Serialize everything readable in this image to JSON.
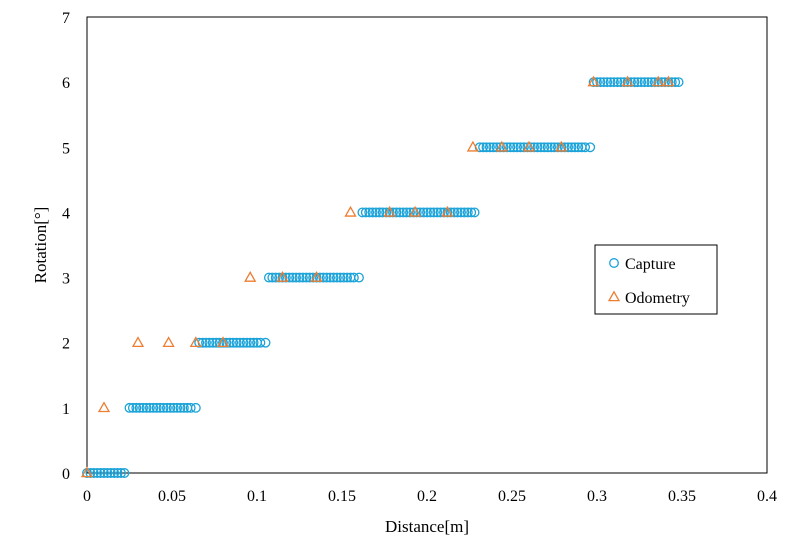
{
  "chart_data": {
    "type": "scatter",
    "title": "",
    "xlabel": "Distance[m]",
    "ylabel": "Rotation[°]",
    "xlim": [
      0,
      0.4
    ],
    "ylim": [
      0,
      7
    ],
    "x_ticks": [
      "0",
      "0.05",
      "0.1",
      "0.15",
      "0.2",
      "0.25",
      "0.3",
      "0.35",
      "0.4"
    ],
    "y_ticks": [
      "0",
      "1",
      "2",
      "3",
      "4",
      "5",
      "6",
      "7"
    ],
    "grid": false,
    "legend_position": "right",
    "series": [
      {
        "name": "Capture",
        "marker": "circle",
        "color": "#1BA3D9",
        "points": [
          [
            0.0,
            0
          ],
          [
            0.002,
            0
          ],
          [
            0.004,
            0
          ],
          [
            0.006,
            0
          ],
          [
            0.008,
            0
          ],
          [
            0.01,
            0
          ],
          [
            0.012,
            0
          ],
          [
            0.014,
            0
          ],
          [
            0.016,
            0
          ],
          [
            0.018,
            0
          ],
          [
            0.02,
            0
          ],
          [
            0.022,
            0
          ],
          [
            0.025,
            1
          ],
          [
            0.027,
            1
          ],
          [
            0.029,
            1
          ],
          [
            0.031,
            1
          ],
          [
            0.033,
            1
          ],
          [
            0.035,
            1
          ],
          [
            0.037,
            1
          ],
          [
            0.039,
            1
          ],
          [
            0.041,
            1
          ],
          [
            0.043,
            1
          ],
          [
            0.045,
            1
          ],
          [
            0.047,
            1
          ],
          [
            0.049,
            1
          ],
          [
            0.051,
            1
          ],
          [
            0.053,
            1
          ],
          [
            0.055,
            1
          ],
          [
            0.057,
            1
          ],
          [
            0.059,
            1
          ],
          [
            0.061,
            1
          ],
          [
            0.064,
            1
          ],
          [
            0.066,
            2
          ],
          [
            0.068,
            2
          ],
          [
            0.07,
            2
          ],
          [
            0.072,
            2
          ],
          [
            0.074,
            2
          ],
          [
            0.076,
            2
          ],
          [
            0.078,
            2
          ],
          [
            0.08,
            2
          ],
          [
            0.082,
            2
          ],
          [
            0.084,
            2
          ],
          [
            0.086,
            2
          ],
          [
            0.088,
            2
          ],
          [
            0.09,
            2
          ],
          [
            0.092,
            2
          ],
          [
            0.094,
            2
          ],
          [
            0.096,
            2
          ],
          [
            0.098,
            2
          ],
          [
            0.1,
            2
          ],
          [
            0.102,
            2
          ],
          [
            0.105,
            2
          ],
          [
            0.107,
            3
          ],
          [
            0.109,
            3
          ],
          [
            0.111,
            3
          ],
          [
            0.113,
            3
          ],
          [
            0.115,
            3
          ],
          [
            0.117,
            3
          ],
          [
            0.119,
            3
          ],
          [
            0.121,
            3
          ],
          [
            0.123,
            3
          ],
          [
            0.125,
            3
          ],
          [
            0.127,
            3
          ],
          [
            0.129,
            3
          ],
          [
            0.131,
            3
          ],
          [
            0.133,
            3
          ],
          [
            0.135,
            3
          ],
          [
            0.137,
            3
          ],
          [
            0.139,
            3
          ],
          [
            0.141,
            3
          ],
          [
            0.143,
            3
          ],
          [
            0.145,
            3
          ],
          [
            0.147,
            3
          ],
          [
            0.149,
            3
          ],
          [
            0.151,
            3
          ],
          [
            0.153,
            3
          ],
          [
            0.155,
            3
          ],
          [
            0.157,
            3
          ],
          [
            0.16,
            3
          ],
          [
            0.162,
            4
          ],
          [
            0.164,
            4
          ],
          [
            0.166,
            4
          ],
          [
            0.168,
            4
          ],
          [
            0.17,
            4
          ],
          [
            0.172,
            4
          ],
          [
            0.174,
            4
          ],
          [
            0.176,
            4
          ],
          [
            0.178,
            4
          ],
          [
            0.18,
            4
          ],
          [
            0.182,
            4
          ],
          [
            0.184,
            4
          ],
          [
            0.186,
            4
          ],
          [
            0.188,
            4
          ],
          [
            0.19,
            4
          ],
          [
            0.192,
            4
          ],
          [
            0.194,
            4
          ],
          [
            0.196,
            4
          ],
          [
            0.198,
            4
          ],
          [
            0.2,
            4
          ],
          [
            0.202,
            4
          ],
          [
            0.204,
            4
          ],
          [
            0.206,
            4
          ],
          [
            0.208,
            4
          ],
          [
            0.21,
            4
          ],
          [
            0.212,
            4
          ],
          [
            0.214,
            4
          ],
          [
            0.216,
            4
          ],
          [
            0.218,
            4
          ],
          [
            0.22,
            4
          ],
          [
            0.222,
            4
          ],
          [
            0.224,
            4
          ],
          [
            0.226,
            4
          ],
          [
            0.228,
            4
          ],
          [
            0.231,
            5
          ],
          [
            0.233,
            5
          ],
          [
            0.235,
            5
          ],
          [
            0.237,
            5
          ],
          [
            0.239,
            5
          ],
          [
            0.241,
            5
          ],
          [
            0.243,
            5
          ],
          [
            0.245,
            5
          ],
          [
            0.247,
            5
          ],
          [
            0.249,
            5
          ],
          [
            0.251,
            5
          ],
          [
            0.253,
            5
          ],
          [
            0.255,
            5
          ],
          [
            0.257,
            5
          ],
          [
            0.259,
            5
          ],
          [
            0.261,
            5
          ],
          [
            0.263,
            5
          ],
          [
            0.265,
            5
          ],
          [
            0.267,
            5
          ],
          [
            0.269,
            5
          ],
          [
            0.271,
            5
          ],
          [
            0.273,
            5
          ],
          [
            0.275,
            5
          ],
          [
            0.277,
            5
          ],
          [
            0.279,
            5
          ],
          [
            0.281,
            5
          ],
          [
            0.283,
            5
          ],
          [
            0.285,
            5
          ],
          [
            0.287,
            5
          ],
          [
            0.289,
            5
          ],
          [
            0.291,
            5
          ],
          [
            0.293,
            5
          ],
          [
            0.296,
            5
          ],
          [
            0.298,
            6
          ],
          [
            0.3,
            6
          ],
          [
            0.302,
            6
          ],
          [
            0.304,
            6
          ],
          [
            0.306,
            6
          ],
          [
            0.308,
            6
          ],
          [
            0.31,
            6
          ],
          [
            0.312,
            6
          ],
          [
            0.314,
            6
          ],
          [
            0.316,
            6
          ],
          [
            0.318,
            6
          ],
          [
            0.32,
            6
          ],
          [
            0.322,
            6
          ],
          [
            0.324,
            6
          ],
          [
            0.326,
            6
          ],
          [
            0.328,
            6
          ],
          [
            0.33,
            6
          ],
          [
            0.332,
            6
          ],
          [
            0.334,
            6
          ],
          [
            0.336,
            6
          ],
          [
            0.338,
            6
          ],
          [
            0.34,
            6
          ],
          [
            0.342,
            6
          ],
          [
            0.344,
            6
          ],
          [
            0.346,
            6
          ],
          [
            0.348,
            6
          ]
        ]
      },
      {
        "name": "Odometry",
        "marker": "triangle",
        "color": "#ED7D31",
        "points": [
          [
            0.0,
            0
          ],
          [
            0.01,
            1
          ],
          [
            0.03,
            2
          ],
          [
            0.048,
            2
          ],
          [
            0.064,
            2
          ],
          [
            0.08,
            2
          ],
          [
            0.096,
            3
          ],
          [
            0.115,
            3
          ],
          [
            0.135,
            3
          ],
          [
            0.155,
            4
          ],
          [
            0.178,
            4
          ],
          [
            0.193,
            4
          ],
          [
            0.212,
            4
          ],
          [
            0.227,
            5
          ],
          [
            0.244,
            5
          ],
          [
            0.26,
            5
          ],
          [
            0.279,
            5
          ],
          [
            0.298,
            6
          ],
          [
            0.318,
            6
          ],
          [
            0.336,
            6
          ],
          [
            0.342,
            6
          ]
        ]
      }
    ]
  }
}
